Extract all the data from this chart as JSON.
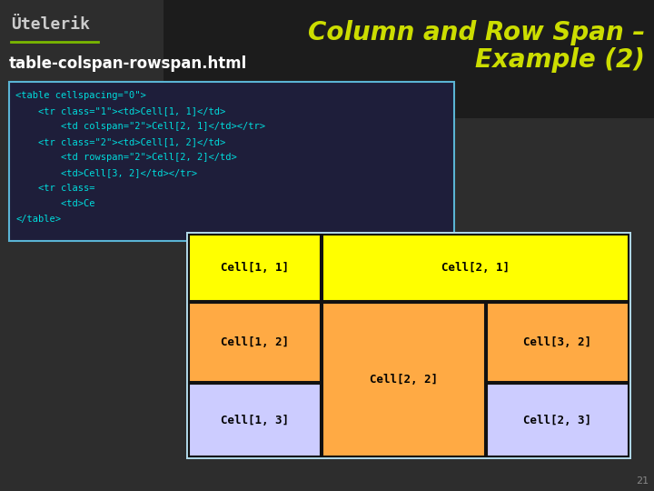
{
  "bg_color": "#2d2d2d",
  "bg_color_top_right": "#1a1a1a",
  "title_line1": "Column and Row Span –",
  "title_line2": "Example (2)",
  "title_color": "#ccdd00",
  "title_fontsize": 20,
  "subtitle": "table-colspan-rowspan.html",
  "subtitle_color": "#ffffff",
  "subtitle_fontsize": 12,
  "telerik_text": "Ütelerik",
  "telerik_color": "#cccccc",
  "underline_color": "#7ab800",
  "code_bg": "#1e1e3a",
  "code_border": "#5ab4d4",
  "code_text_color": "#00dddd",
  "code_fontsize": 7.5,
  "code_lines": [
    "<table cellspacing=\"0\">",
    "    <tr class=\"1\"><td>Cell[1, 1]</td>",
    "        <td colspan=\"2\">Cell[2, 1]</td></tr>",
    "    <tr class=\"2\"><td>Cell[1, 2]</td>",
    "        <td rowspan=\"2\">Cell[2, 2]</td>",
    "        <td>Cell[3, 2]</td></tr>",
    "    <tr class=",
    "        <td>Ce",
    "</table>"
  ],
  "table_outer_color": "#b0d8e8",
  "cell_border_color": "#111111",
  "row1_color": "#ffff00",
  "row2_color": "#ffaa44",
  "row3_color": "#ccccff",
  "cell_text_color": "#000000",
  "cell_fontsize": 9,
  "page_number": "21",
  "page_number_color": "#888888",
  "page_number_fontsize": 8
}
